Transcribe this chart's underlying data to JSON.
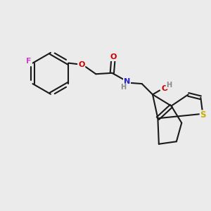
{
  "background_color": "#ebebeb",
  "bond_color": "#1a1a1a",
  "atom_colors": {
    "F": "#cc44cc",
    "O": "#cc0000",
    "N": "#2222cc",
    "S": "#ccaa00",
    "H": "#888888",
    "C": "#1a1a1a"
  },
  "figsize": [
    3.0,
    3.0
  ],
  "dpi": 100
}
